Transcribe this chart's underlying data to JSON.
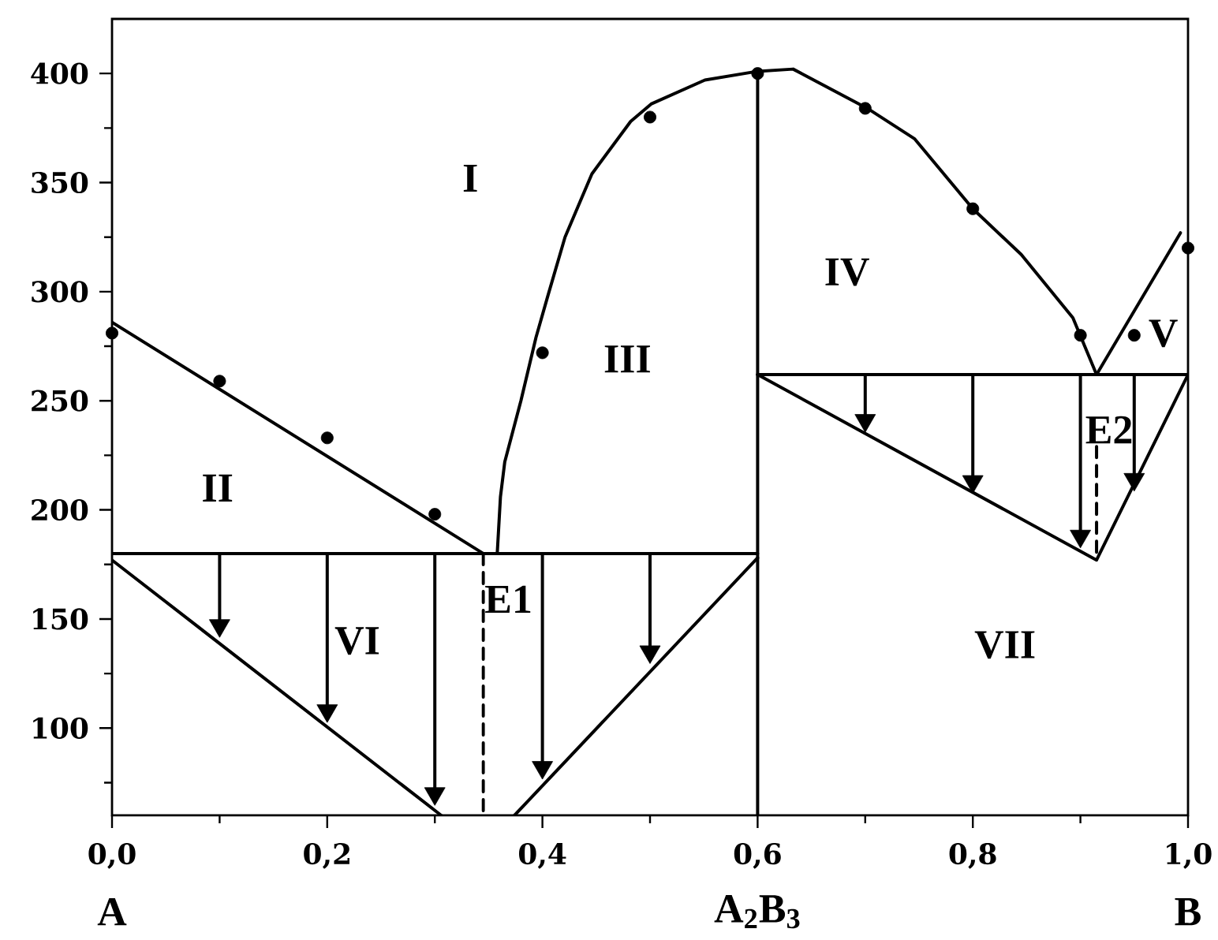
{
  "chart_data": {
    "type": "line",
    "xlim": [
      0,
      1
    ],
    "ylim": [
      60,
      425
    ],
    "xticks": [
      {
        "value": 0,
        "label": "0,0"
      },
      {
        "value": 0.1,
        "label": null
      },
      {
        "value": 0.2,
        "label": "0,2"
      },
      {
        "value": 0.3,
        "label": null
      },
      {
        "value": 0.4,
        "label": "0,4"
      },
      {
        "value": 0.5,
        "label": null
      },
      {
        "value": 0.6,
        "label": "0,6"
      },
      {
        "value": 0.7,
        "label": null
      },
      {
        "value": 0.8,
        "label": "0,8"
      },
      {
        "value": 0.9,
        "label": null
      },
      {
        "value": 1,
        "label": "1,0"
      }
    ],
    "yticks": [
      {
        "value": 75,
        "label": null
      },
      100,
      {
        "value": 125,
        "label": null
      },
      150,
      {
        "value": 175,
        "label": null
      },
      200,
      {
        "value": 225,
        "label": null
      },
      250,
      {
        "value": 275,
        "label": null
      },
      300,
      {
        "value": 325,
        "label": null
      },
      350,
      {
        "value": 375,
        "label": null
      },
      400
    ],
    "series": [
      {
        "type": "scatter",
        "marker": "circle",
        "color": "#000000",
        "x": [
          0,
          0.1,
          0.2,
          0.3,
          0.4,
          0.5,
          0.6,
          0.7,
          0.8,
          0.9,
          0.95,
          1.0
        ],
        "values": [
          281,
          259,
          233,
          198,
          272,
          380,
          400,
          384,
          338,
          280,
          280,
          320
        ]
      },
      {
        "color": "#000000",
        "x": [
          0,
          0.345
        ],
        "values": [
          286,
          180
        ]
      },
      {
        "color": "#000000",
        "x": [
          0.358,
          0.361,
          0.365,
          0.38,
          0.394,
          0.405,
          0.421,
          0.446,
          0.482,
          0.501,
          0.551,
          0.6,
          0.633,
          0.702,
          0.746,
          0.8,
          0.845,
          0.893,
          0.915
        ],
        "values": [
          180,
          206,
          222,
          250,
          279,
          298,
          325,
          354,
          378,
          386,
          397,
          401,
          402,
          384,
          370,
          338,
          317,
          288,
          262
        ]
      },
      {
        "color": "#000000",
        "x": [
          0.915,
          0.993
        ],
        "values": [
          262,
          327
        ]
      },
      {
        "color": "#000000",
        "x": [
          0.6,
          0.6
        ],
        "values": [
          401,
          60
        ]
      },
      {
        "color": "#000000",
        "x": [
          0,
          0.6
        ],
        "values": [
          180,
          180
        ]
      },
      {
        "color": "#000000",
        "x": [
          0.6,
          1.0
        ],
        "values": [
          262,
          262
        ]
      },
      {
        "color": "#000000",
        "x": [
          0,
          0.306
        ],
        "values": [
          177,
          60
        ]
      },
      {
        "color": "#000000",
        "x": [
          0.374,
          0.6
        ],
        "values": [
          60,
          178
        ]
      },
      {
        "color": "#000000",
        "x": [
          0.6,
          0.915,
          1.0
        ],
        "values": [
          262,
          177,
          262
        ]
      },
      {
        "color": "#000000",
        "line_style": "dashed",
        "x": [
          0.345,
          0.345
        ],
        "values": [
          180,
          60
        ]
      },
      {
        "color": "#000000",
        "line_style": "dashed",
        "x": [
          0.915,
          0.915
        ],
        "values": [
          229,
          177
        ]
      },
      {
        "color": "#000000",
        "x": [
          0.1,
          0.1,
          null,
          0.2,
          0.2,
          null,
          0.3,
          0.3,
          null,
          0.4,
          0.4,
          null,
          0.5,
          0.5,
          null,
          0.7,
          0.7,
          null,
          0.8,
          0.8,
          null,
          0.9,
          0.9,
          null,
          0.95,
          0.95
        ],
        "values": [
          180,
          147,
          null,
          180,
          108,
          null,
          180,
          70,
          null,
          180,
          82,
          null,
          180,
          135,
          null,
          262,
          241,
          null,
          262,
          213,
          null,
          262,
          188,
          null,
          262,
          214
        ]
      },
      {
        "type": "scatter",
        "marker": "triangle",
        "color": "#000000",
        "x": [
          0.1,
          0.2,
          0.3,
          0.4,
          0.5,
          0.7,
          0.8,
          0.9,
          0.95
        ],
        "values": [
          147,
          108,
          70,
          82,
          135,
          241,
          213,
          188,
          214
        ]
      }
    ],
    "annotations": [
      "I",
      "II",
      "III",
      "IV",
      "V",
      "VI",
      "VII",
      "A",
      "A$_{2}$B$_{3}$",
      "B",
      {
        "text": "E1",
        "x": 0.345,
        "y": 180
      },
      {
        "text": "E2",
        "x": 0.915,
        "y": 262
      }
    ]
  }
}
